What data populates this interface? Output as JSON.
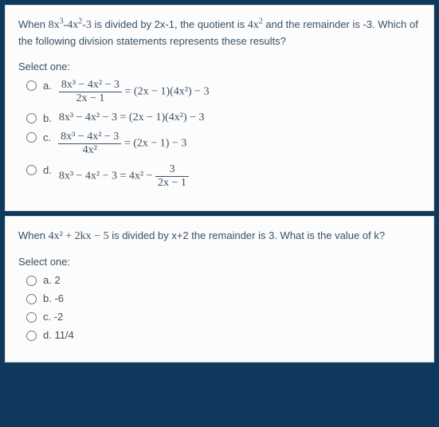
{
  "q1": {
    "prompt_a": "When ",
    "prompt_b": " is divided by 2x-1, the quotient is ",
    "prompt_c": " and the remainder is -3.  Which of the following division statements represents these results?",
    "poly1": "8x",
    "poly1b": "-4x",
    "poly1c": "-3",
    "quot": "4x",
    "select": "Select one:",
    "a": "a.",
    "b": "b.",
    "c": "c.",
    "d": "d.",
    "opt_a_num": "8x³ − 4x² − 3",
    "opt_a_den": "2x − 1",
    "opt_a_rhs": " = (2x − 1)(4x²) − 3",
    "opt_b": "8x³ − 4x² − 3 = (2x − 1)(4x²) − 3",
    "opt_c_num": "8x³ − 4x² − 3",
    "opt_c_den": "4x²",
    "opt_c_rhs": " = (2x − 1) − 3",
    "opt_d_lhs": "8x³ − 4x² − 3 = 4x² − ",
    "opt_d_num": "3",
    "opt_d_den": "2x − 1"
  },
  "q2": {
    "prompt_a": "When ",
    "prompt_b": " is divided by x+2 the remainder is 3.  What is the value of k?",
    "poly": "4x² + 2kx − 5",
    "select": "Select one:",
    "a": "a. 2",
    "b": "b. -6",
    "c": "c. -2",
    "d": "d. 11/4"
  }
}
